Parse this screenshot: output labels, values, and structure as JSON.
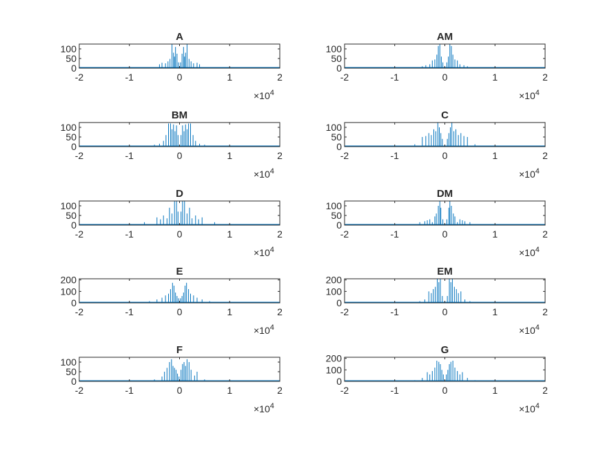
{
  "figure": {
    "background": "#ffffff",
    "line_color": "#0072BD",
    "axis_color": "#262626"
  },
  "chart_data": [
    {
      "type": "line",
      "title": "A",
      "xlim": [
        -20000,
        20000
      ],
      "ylim": [
        0,
        125
      ],
      "xticks": [
        -2,
        -1,
        0,
        1,
        2
      ],
      "x_tick_labels": [
        "-2",
        "-1",
        "0",
        "1",
        "2"
      ],
      "yticks": [
        0,
        50,
        100
      ],
      "y_tick_labels": [
        "0",
        "50",
        "100"
      ],
      "x_exponent_label": "×10",
      "x_exponent": "4",
      "series": [
        {
          "x": [
            -7500,
            -4000,
            -3500,
            -2800,
            -2300,
            -1900,
            -1500,
            -1200,
            -1000,
            -800,
            -500,
            -200,
            200,
            500,
            800,
            1000,
            1200,
            1500,
            1900,
            2300,
            2800,
            3500,
            4000,
            7500
          ],
          "y": [
            4,
            20,
            28,
            25,
            35,
            48,
            125,
            80,
            60,
            110,
            75,
            30,
            30,
            75,
            110,
            60,
            80,
            125,
            48,
            35,
            25,
            28,
            20,
            4
          ]
        }
      ]
    },
    {
      "type": "line",
      "title": "AM",
      "xlim": [
        -20000,
        20000
      ],
      "ylim": [
        0,
        125
      ],
      "xticks": [
        -2,
        -1,
        0,
        1,
        2
      ],
      "x_tick_labels": [
        "-2",
        "-1",
        "0",
        "1",
        "2"
      ],
      "yticks": [
        0,
        50,
        100
      ],
      "y_tick_labels": [
        "0",
        "50",
        "100"
      ],
      "x_exponent_label": "×10",
      "x_exponent": "4",
      "series": [
        {
          "x": [
            -7000,
            -4500,
            -3800,
            -3000,
            -2500,
            -2000,
            -1600,
            -1300,
            -1000,
            -700,
            -400,
            400,
            700,
            1000,
            1300,
            1600,
            2000,
            2500,
            3000,
            3800,
            4500,
            7000
          ],
          "y": [
            5,
            10,
            15,
            20,
            40,
            45,
            70,
            115,
            125,
            60,
            30,
            30,
            60,
            125,
            115,
            70,
            45,
            40,
            20,
            15,
            10,
            5
          ]
        }
      ]
    },
    {
      "type": "line",
      "title": "BM",
      "xlim": [
        -20000,
        20000
      ],
      "ylim": [
        0,
        125
      ],
      "xticks": [
        -2,
        -1,
        0,
        1,
        2
      ],
      "x_tick_labels": [
        "-2",
        "-1",
        "0",
        "1",
        "2"
      ],
      "yticks": [
        0,
        50,
        100
      ],
      "y_tick_labels": [
        "0",
        "50",
        "100"
      ],
      "x_exponent_label": "×10",
      "x_exponent": "4",
      "series": [
        {
          "x": [
            -7000,
            -5000,
            -4000,
            -3200,
            -2700,
            -2200,
            -1800,
            -1500,
            -1200,
            -900,
            -600,
            -300,
            300,
            600,
            900,
            1200,
            1500,
            1800,
            2200,
            2700,
            3200,
            4000,
            5000,
            7000
          ],
          "y": [
            5,
            10,
            15,
            30,
            60,
            120,
            120,
            90,
            115,
            80,
            110,
            60,
            60,
            110,
            80,
            115,
            90,
            120,
            120,
            60,
            30,
            15,
            10,
            5
          ]
        }
      ]
    },
    {
      "type": "line",
      "title": "C",
      "xlim": [
        -20000,
        20000
      ],
      "ylim": [
        0,
        125
      ],
      "xticks": [
        -2,
        -1,
        0,
        1,
        2
      ],
      "x_tick_labels": [
        "-2",
        "-1",
        "0",
        "1",
        "2"
      ],
      "yticks": [
        0,
        50,
        100
      ],
      "y_tick_labels": [
        "0",
        "50",
        "100"
      ],
      "x_exponent_label": "×10",
      "x_exponent": "4",
      "series": [
        {
          "x": [
            -9000,
            -6000,
            -4500,
            -3800,
            -3200,
            -2700,
            -2200,
            -1800,
            -1400,
            -1100,
            -800,
            -500,
            500,
            800,
            1100,
            1400,
            1800,
            2200,
            2700,
            3200,
            3800,
            4500,
            6000,
            9000
          ],
          "y": [
            5,
            12,
            50,
            55,
            70,
            60,
            90,
            80,
            125,
            100,
            70,
            40,
            40,
            70,
            100,
            125,
            80,
            90,
            60,
            70,
            55,
            50,
            12,
            5
          ]
        }
      ]
    },
    {
      "type": "line",
      "title": "D",
      "xlim": [
        -20000,
        20000
      ],
      "ylim": [
        0,
        125
      ],
      "xticks": [
        -2,
        -1,
        0,
        1,
        2
      ],
      "x_tick_labels": [
        "-2",
        "-1",
        "0",
        "1",
        "2"
      ],
      "yticks": [
        0,
        50,
        100
      ],
      "y_tick_labels": [
        "0",
        "50",
        "100"
      ],
      "x_exponent_label": "×10",
      "x_exponent": "4",
      "series": [
        {
          "x": [
            -9000,
            -7000,
            -4500,
            -3800,
            -3200,
            -2500,
            -2000,
            -1500,
            -1000,
            -600,
            -300,
            300,
            600,
            1000,
            1500,
            2000,
            2500,
            3200,
            3800,
            4500,
            7000,
            9000
          ],
          "y": [
            5,
            15,
            40,
            30,
            50,
            35,
            90,
            60,
            125,
            125,
            70,
            70,
            125,
            125,
            60,
            90,
            35,
            50,
            30,
            40,
            15,
            5
          ]
        }
      ]
    },
    {
      "type": "line",
      "title": "DM",
      "xlim": [
        -20000,
        20000
      ],
      "ylim": [
        0,
        125
      ],
      "xticks": [
        -2,
        -1,
        0,
        1,
        2
      ],
      "x_tick_labels": [
        "-2",
        "-1",
        "0",
        "1",
        "2"
      ],
      "yticks": [
        0,
        50,
        100
      ],
      "y_tick_labels": [
        "0",
        "50",
        "100"
      ],
      "x_exponent_label": "×10",
      "x_exponent": "4",
      "series": [
        {
          "x": [
            -8000,
            -5000,
            -4000,
            -3500,
            -3000,
            -2500,
            -2000,
            -1700,
            -1300,
            -1000,
            -800,
            -400,
            400,
            800,
            1000,
            1300,
            1700,
            2000,
            2500,
            3000,
            3500,
            4000,
            5000,
            8000
          ],
          "y": [
            5,
            15,
            20,
            25,
            30,
            15,
            45,
            60,
            100,
            125,
            90,
            30,
            30,
            90,
            125,
            100,
            60,
            45,
            15,
            30,
            25,
            20,
            15,
            5
          ]
        }
      ]
    },
    {
      "type": "line",
      "title": "E",
      "xlim": [
        -20000,
        20000
      ],
      "ylim": [
        0,
        210
      ],
      "xticks": [
        -2,
        -1,
        0,
        1,
        2
      ],
      "x_tick_labels": [
        "-2",
        "-1",
        "0",
        "1",
        "2"
      ],
      "yticks": [
        0,
        100,
        200
      ],
      "y_tick_labels": [
        "0",
        "100",
        "200"
      ],
      "x_exponent_label": "×10",
      "x_exponent": "4",
      "series": [
        {
          "x": [
            -9000,
            -6000,
            -4500,
            -3500,
            -2800,
            -2200,
            -1800,
            -1400,
            -1100,
            -800,
            -500,
            -200,
            200,
            500,
            800,
            1100,
            1400,
            1800,
            2200,
            2800,
            3500,
            4500,
            6000,
            9000
          ],
          "y": [
            5,
            15,
            30,
            45,
            65,
            80,
            120,
            175,
            150,
            90,
            60,
            40,
            40,
            60,
            90,
            150,
            175,
            120,
            80,
            65,
            45,
            30,
            15,
            5
          ]
        }
      ]
    },
    {
      "type": "line",
      "title": "EM",
      "xlim": [
        -20000,
        20000
      ],
      "ylim": [
        0,
        210
      ],
      "xticks": [
        -2,
        -1,
        0,
        1,
        2
      ],
      "x_tick_labels": [
        "-2",
        "-1",
        "0",
        "1",
        "2"
      ],
      "yticks": [
        0,
        100,
        200
      ],
      "y_tick_labels": [
        "0",
        "100",
        "200"
      ],
      "x_exponent_label": "×10",
      "x_exponent": "4",
      "series": [
        {
          "x": [
            -8000,
            -5000,
            -4000,
            -3200,
            -2700,
            -2300,
            -1900,
            -1500,
            -1200,
            -900,
            -500,
            500,
            900,
            1200,
            1500,
            1900,
            2300,
            2700,
            3200,
            4000,
            5000,
            8000
          ],
          "y": [
            5,
            15,
            30,
            100,
            85,
            120,
            140,
            210,
            180,
            210,
            60,
            60,
            210,
            180,
            210,
            140,
            120,
            85,
            100,
            30,
            15,
            5
          ]
        }
      ]
    },
    {
      "type": "line",
      "title": "F",
      "xlim": [
        -20000,
        20000
      ],
      "ylim": [
        0,
        125
      ],
      "xticks": [
        -2,
        -1,
        0,
        1,
        2
      ],
      "x_tick_labels": [
        "-2",
        "-1",
        "0",
        "1",
        "2"
      ],
      "yticks": [
        0,
        50,
        100
      ],
      "y_tick_labels": [
        "0",
        "50",
        "100"
      ],
      "x_exponent_label": "×10",
      "x_exponent": "4",
      "series": [
        {
          "x": [
            -8000,
            -5000,
            -3500,
            -3000,
            -2500,
            -2000,
            -1600,
            -1300,
            -1000,
            -700,
            -400,
            -100,
            300,
            600,
            900,
            1200,
            1500,
            1900,
            2300,
            3000,
            3500,
            5000,
            8000
          ],
          "y": [
            5,
            10,
            25,
            50,
            70,
            100,
            115,
            80,
            70,
            60,
            40,
            25,
            60,
            90,
            100,
            80,
            115,
            100,
            60,
            30,
            50,
            10,
            5
          ]
        }
      ]
    },
    {
      "type": "line",
      "title": "G",
      "xlim": [
        -20000,
        20000
      ],
      "ylim": [
        0,
        210
      ],
      "xticks": [
        -2,
        -1,
        0,
        1,
        2
      ],
      "x_tick_labels": [
        "-2",
        "-1",
        "0",
        "1",
        "2"
      ],
      "yticks": [
        0,
        100,
        200
      ],
      "y_tick_labels": [
        "0",
        "100",
        "200"
      ],
      "x_exponent_label": "×10",
      "x_exponent": "4",
      "series": [
        {
          "x": [
            -8000,
            -6000,
            -4500,
            -3500,
            -3000,
            -2500,
            -2000,
            -1600,
            -1200,
            -900,
            -600,
            -300,
            300,
            600,
            900,
            1200,
            1600,
            2000,
            2500,
            3000,
            3500,
            4500,
            6000,
            8000
          ],
          "y": [
            5,
            10,
            30,
            80,
            60,
            90,
            120,
            180,
            170,
            150,
            100,
            60,
            60,
            100,
            150,
            170,
            180,
            120,
            90,
            60,
            80,
            30,
            10,
            5
          ]
        }
      ]
    }
  ]
}
